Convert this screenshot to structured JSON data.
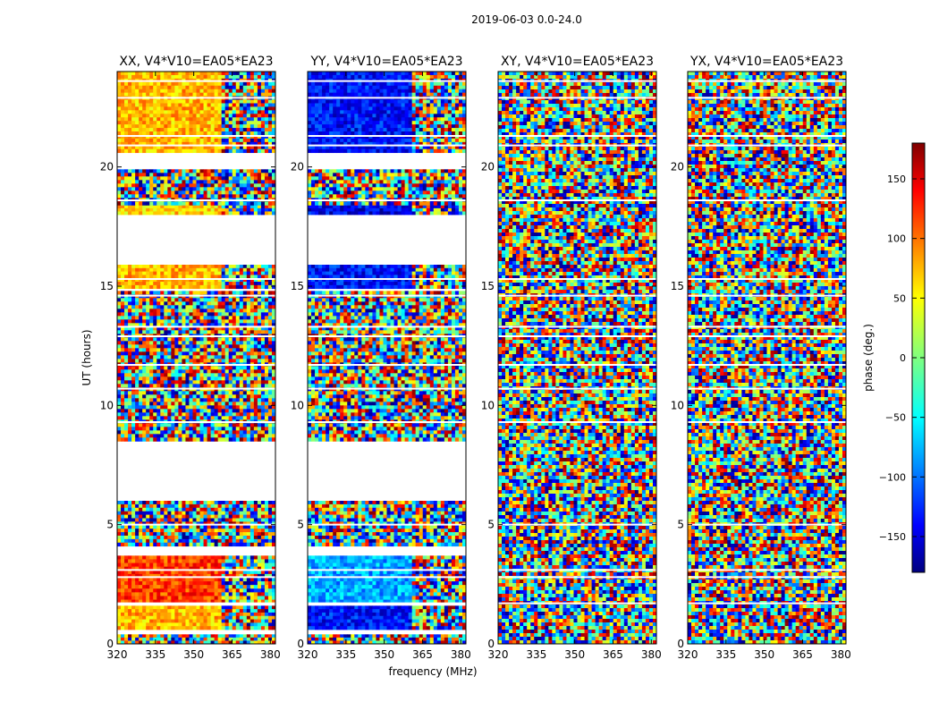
{
  "figure": {
    "suptitle": "2019-06-03 0.0-24.0",
    "xlabel": "frequency (MHz)",
    "ylabel": "UT (hours)"
  },
  "chart_data": [
    {
      "type": "heatmap",
      "title": "XX, V4*V10=EA05*EA23",
      "polarization": "XX",
      "baseline": "V4*V10=EA05*EA23",
      "xlim": [
        320,
        382
      ],
      "ylim": [
        0,
        24
      ],
      "xticks": [
        320,
        335,
        350,
        365,
        380
      ],
      "yticks": [
        0,
        5,
        10,
        15,
        20
      ],
      "dominant_phase_deg": 70,
      "phase_zones": [
        {
          "t0": 0.0,
          "t1": 0.4,
          "phase": "noisy"
        },
        {
          "t0": 0.6,
          "t1": 1.6,
          "phase": 70
        },
        {
          "t0": 1.7,
          "t1": 3.7,
          "phase": 115
        },
        {
          "t0": 4.1,
          "t1": 6.0,
          "phase": "noisy"
        },
        {
          "t0": 8.5,
          "t1": 14.8,
          "phase": "noisy"
        },
        {
          "t0": 14.9,
          "t1": 15.9,
          "phase": 70
        },
        {
          "t0": 18.0,
          "t1": 18.4,
          "phase": 60
        },
        {
          "t0": 18.4,
          "t1": 19.9,
          "phase": "noisy"
        },
        {
          "t0": 20.6,
          "t1": 24.0,
          "phase": 70
        }
      ]
    },
    {
      "type": "heatmap",
      "title": "YY, V4*V10=EA05*EA23",
      "polarization": "YY",
      "baseline": "V4*V10=EA05*EA23",
      "xlim": [
        320,
        382
      ],
      "ylim": [
        0,
        24
      ],
      "xticks": [
        320,
        335,
        350,
        365,
        380
      ],
      "yticks": [
        0,
        5,
        10,
        15,
        20
      ],
      "dominant_phase_deg": -120,
      "phase_zones": [
        {
          "t0": 0.0,
          "t1": 0.4,
          "phase": "noisy"
        },
        {
          "t0": 0.6,
          "t1": 1.6,
          "phase": -130
        },
        {
          "t0": 1.7,
          "t1": 3.7,
          "phase": -75
        },
        {
          "t0": 4.1,
          "t1": 6.0,
          "phase": "noisy"
        },
        {
          "t0": 8.5,
          "t1": 14.8,
          "phase": "noisy"
        },
        {
          "t0": 14.9,
          "t1": 15.9,
          "phase": -130
        },
        {
          "t0": 18.0,
          "t1": 18.4,
          "phase": -140
        },
        {
          "t0": 18.4,
          "t1": 19.9,
          "phase": "noisy"
        },
        {
          "t0": 20.6,
          "t1": 24.0,
          "phase": -130
        }
      ]
    },
    {
      "type": "heatmap",
      "title": "XY, V4*V10=EA05*EA23",
      "polarization": "XY",
      "baseline": "V4*V10=EA05*EA23",
      "xlim": [
        320,
        382
      ],
      "ylim": [
        0,
        24
      ],
      "xticks": [
        320,
        335,
        350,
        365,
        380
      ],
      "yticks": [
        0,
        5,
        10,
        15,
        20
      ],
      "dominant_phase_deg": "noisy",
      "phase_zones": [
        {
          "t0": 0.0,
          "t1": 24.0,
          "phase": "noisy"
        }
      ]
    },
    {
      "type": "heatmap",
      "title": "YX, V4*V10=EA05*EA23",
      "polarization": "YX",
      "baseline": "V4*V10=EA05*EA23",
      "xlim": [
        320,
        382
      ],
      "ylim": [
        0,
        24
      ],
      "xticks": [
        320,
        335,
        350,
        365,
        380
      ],
      "yticks": [
        0,
        5,
        10,
        15,
        20
      ],
      "dominant_phase_deg": "noisy",
      "phase_zones": [
        {
          "t0": 0.0,
          "t1": 24.0,
          "phase": "noisy"
        }
      ]
    }
  ],
  "flagged_gaps_ut": [
    [
      0.4,
      0.6
    ],
    [
      3.7,
      4.1
    ],
    [
      6.0,
      8.5
    ],
    [
      15.9,
      18.0
    ],
    [
      19.9,
      20.6
    ]
  ],
  "colorbar": {
    "label": "phase (deg.)",
    "range": [
      -180,
      180
    ],
    "ticks": [
      150,
      100,
      50,
      0,
      -50,
      -100,
      -150
    ],
    "tick_labels": [
      "150",
      "100",
      "50",
      "0",
      "−50",
      "−100",
      "−150"
    ],
    "colormap": "jet"
  },
  "colors": {
    "axes": "#000000",
    "background": "#ffffff",
    "jet": [
      "#00007f",
      "#0000ff",
      "#007fff",
      "#00ffff",
      "#7fff7f",
      "#ffff00",
      "#ff7f00",
      "#ff0000",
      "#7f0000"
    ]
  }
}
